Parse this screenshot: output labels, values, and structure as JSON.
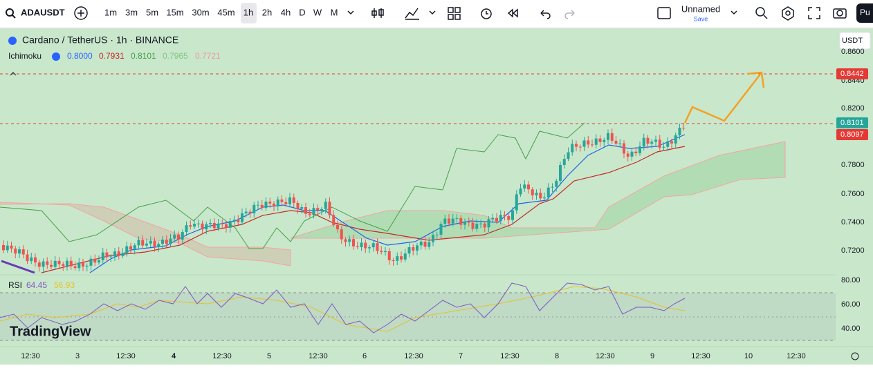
{
  "toolbar": {
    "symbol": "ADAUSDT",
    "intervals": [
      "1m",
      "3m",
      "5m",
      "15m",
      "30m",
      "45m",
      "1h",
      "2h",
      "4h",
      "D",
      "W",
      "M"
    ],
    "layout_name": "Unnamed",
    "save": "Save",
    "profile": "Pu"
  },
  "legend": {
    "title": "Cardano / TetherUS · 1h · BINANCE",
    "indicator": "Ichimoku",
    "indicator_values": [
      "0.8000",
      "0.7931",
      "0.8101",
      "0.7965",
      "0.7721"
    ],
    "rsi": "RSI",
    "rsi_values": [
      "64.45",
      "56.93"
    ]
  },
  "currency": "USDT",
  "price_axis": [
    "0.8600",
    "0.8440",
    "0.8200",
    "0.7800",
    "0.7600",
    "0.7400",
    "0.7200"
  ],
  "price_tags": [
    "0.8442",
    "0.8101",
    "0.8097"
  ],
  "rsi_axis": [
    "80.00",
    "60.00",
    "40.00"
  ],
  "time_axis": [
    "12:30",
    "3",
    "12:30",
    "4",
    "12:30",
    "5",
    "12:30",
    "6",
    "12:30",
    "7",
    "12:30",
    "8",
    "12:30",
    "9",
    "12:30",
    "10",
    "12:30"
  ],
  "logo": "TradingView"
}
